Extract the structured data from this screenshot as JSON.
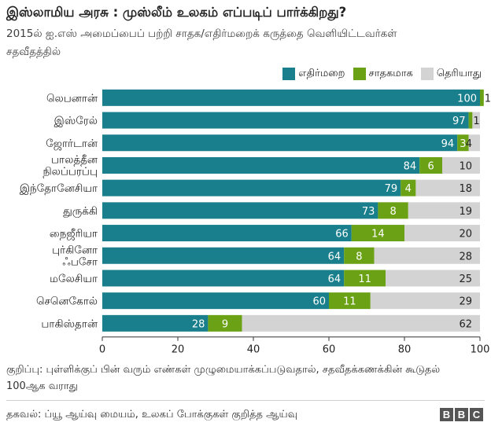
{
  "title": "இஸ்லாமிய அரசு : முஸ்லீம் உலகம் எப்படிப் பார்க்கிறது?",
  "subtitle": "2015ல் ஐ.எஸ் அமைப்பைப் பற்றி சாதக/எதிர்மறைக் கருத்தை வெளியிட்டவர்கள் சதவீதத்தில்",
  "note": "குறிப்பு: புள்ளிக்குப் பின் வரும் எண்கள் முழுமையாக்கப்படுவதால், சதவீதக்கணக்கின் கூடுதல் 100ஆக வராது",
  "source": "தகவல்: ப்யூ ஆய்வு மையம், உலகப் போக்குகள் குறித்த ஆய்வு",
  "logo": [
    "B",
    "B",
    "C"
  ],
  "colors": {
    "negative": "#1a7f8c",
    "positive": "#6aa115",
    "unknown": "#d3d3d3",
    "text": "#222222",
    "axis": "#333333"
  },
  "chart_data": {
    "type": "bar",
    "orientation": "horizontal",
    "stacked": true,
    "categories": [
      "லெபனான்",
      "இஸ்ரேல்",
      "ஜோர்டான்",
      "பாலத்தீன நிலப்பரப்பு",
      "இந்தோனேசியா",
      "துருக்கி",
      "நைஜீரியா",
      "புர்கினோ ஃபசோ",
      "மலேசியா",
      "செனெகோல்",
      "பாகிஸ்தான்"
    ],
    "series": [
      {
        "name": "எதிர்மறை",
        "values": [
          100,
          97,
          94,
          84,
          79,
          73,
          66,
          64,
          64,
          60,
          28
        ]
      },
      {
        "name": "சாதகமாக",
        "values": [
          1,
          1,
          3,
          6,
          4,
          8,
          14,
          8,
          11,
          11,
          9
        ]
      },
      {
        "name": "தெரியாது",
        "values": [
          1,
          2,
          4,
          10,
          18,
          19,
          20,
          28,
          25,
          29,
          62
        ]
      }
    ],
    "xlim": [
      0,
      100
    ],
    "xticks": [
      0,
      20,
      40,
      60,
      80,
      100
    ],
    "legend_position": "top-right",
    "grid": false
  }
}
